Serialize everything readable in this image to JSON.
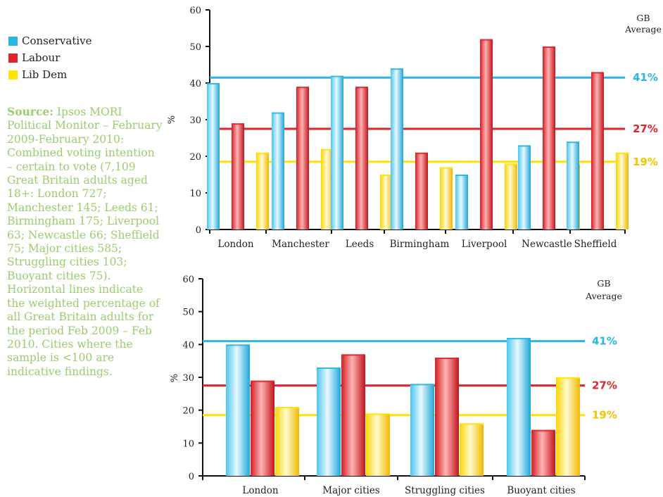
{
  "legend": [
    {
      "name": "Conservative",
      "color": "#29b6e3"
    },
    {
      "name": "Labour",
      "color": "#e2232a"
    },
    {
      "name": "Lib Dem",
      "color": "#ffe400"
    }
  ],
  "source": {
    "label": "Source:",
    "text": " Ipsos MORI Political Monitor – February 2009-February 2010: Combined voting intention – certain to vote (7,109 Great Britain adults aged 18+: London 727; Manchester 145; Leeds 61; Birmingham 175; Liverpool 63; Newcastle 66; Sheffield 75; Major cities 585; Struggling cities 103; Buoyant cities 75).  Horizontal lines indicate the weighted percentage of all Great Britain adults for the period Feb 2009 – Feb 2010.  Cities where the sample is <100 are indicative findings."
  },
  "chart_data": [
    {
      "type": "bar",
      "ylabel": "%",
      "ylim": [
        0,
        60
      ],
      "yticks": [
        0,
        10,
        20,
        30,
        40,
        50,
        60
      ],
      "categories": [
        "London",
        "Manchester",
        "Leeds",
        "Birmingham",
        "Liverpool",
        "Newcastle",
        "Sheffield"
      ],
      "series": [
        {
          "name": "Conservative",
          "color": "#29b6e3",
          "values": [
            40,
            32,
            42,
            44,
            15,
            23,
            24
          ]
        },
        {
          "name": "Labour",
          "color": "#e2232a",
          "values": [
            29,
            39,
            39,
            21,
            52,
            50,
            43
          ]
        },
        {
          "name": "Lib Dem",
          "color": "#ffe400",
          "values": [
            21,
            22,
            15,
            17,
            18,
            18,
            21
          ]
        }
      ],
      "reference_title": "GB Average",
      "reference_lines": [
        {
          "label": "41%",
          "value": 41.5,
          "color": "#29b6e3"
        },
        {
          "label": "27%",
          "value": 27.5,
          "color": "#e2232a"
        },
        {
          "label": "19%",
          "value": 18.5,
          "color": "#ffe400",
          "text_color": "#f2c500"
        }
      ]
    },
    {
      "type": "bar",
      "ylabel": "%",
      "ylim": [
        0,
        60
      ],
      "yticks": [
        0,
        10,
        20,
        30,
        40,
        50,
        60
      ],
      "categories": [
        "London",
        "Major cities",
        "Struggling cities",
        "Buoyant cities"
      ],
      "series": [
        {
          "name": "Conservative",
          "color": "#29b6e3",
          "values": [
            40,
            33,
            28,
            42
          ]
        },
        {
          "name": "Labour",
          "color": "#e2232a",
          "values": [
            29,
            37,
            36,
            14
          ]
        },
        {
          "name": "Lib Dem",
          "color": "#ffe400",
          "values": [
            21,
            19,
            16,
            30
          ]
        }
      ],
      "reference_title": "GB Average",
      "reference_lines": [
        {
          "label": "41%",
          "value": 41,
          "color": "#29b6e3"
        },
        {
          "label": "27%",
          "value": 27.5,
          "color": "#e2232a"
        },
        {
          "label": "19%",
          "value": 18.5,
          "color": "#ffe400",
          "text_color": "#f2c500"
        }
      ]
    }
  ]
}
